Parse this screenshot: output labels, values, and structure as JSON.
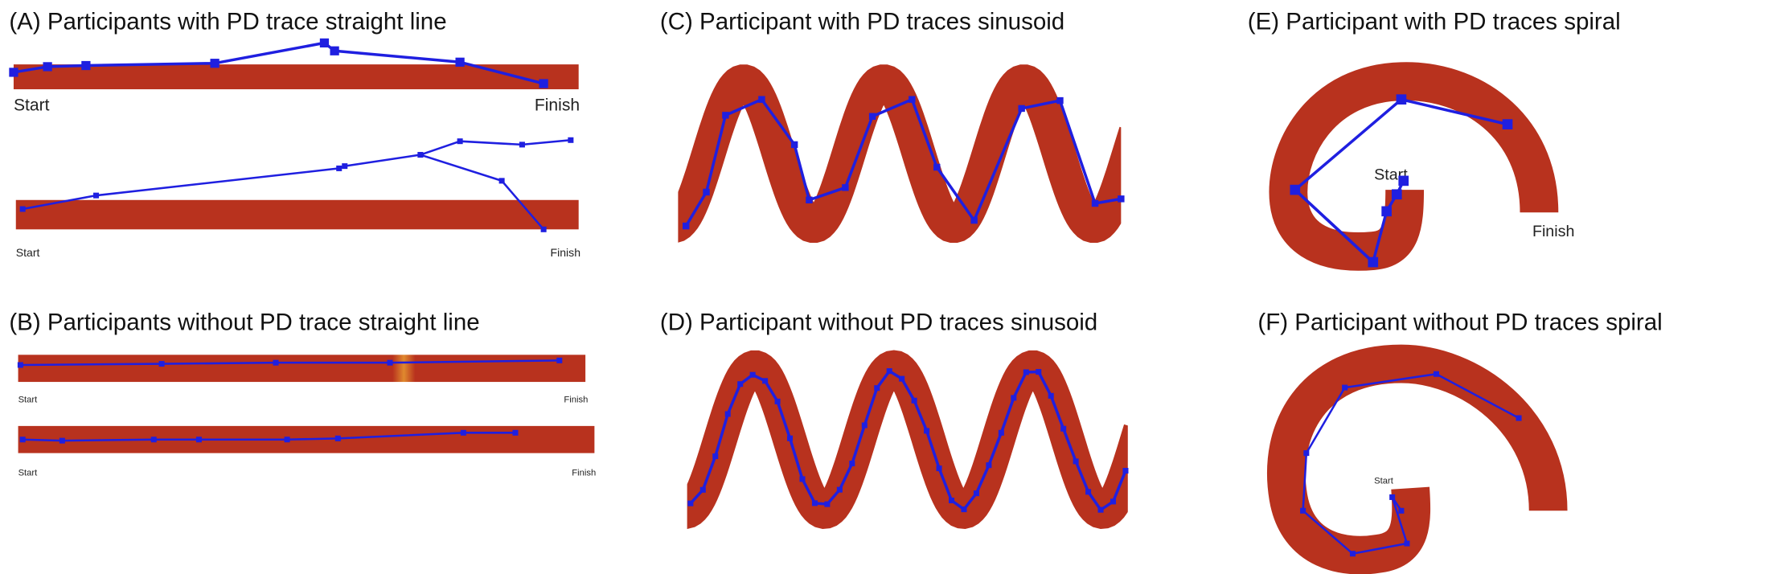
{
  "panels": [
    {
      "title": "(A) Participants with PD trace straight line",
      "labels": [
        "Start",
        "Finish",
        "Start",
        "Finish"
      ]
    },
    {
      "title": "(B) Participants without PD trace straight line",
      "labels": [
        "Start",
        "Finish",
        "Start",
        "Finish"
      ]
    },
    {
      "title": "(C) Participant with PD traces sinusoid"
    },
    {
      "title": "(D) Participant without PD traces sinusoid"
    },
    {
      "title": "(E) Participant with PD traces spiral",
      "labels": [
        "Start",
        "Finish"
      ]
    },
    {
      "title": "(F) Participant without PD traces spiral",
      "labels": [
        "Start"
      ]
    }
  ]
}
